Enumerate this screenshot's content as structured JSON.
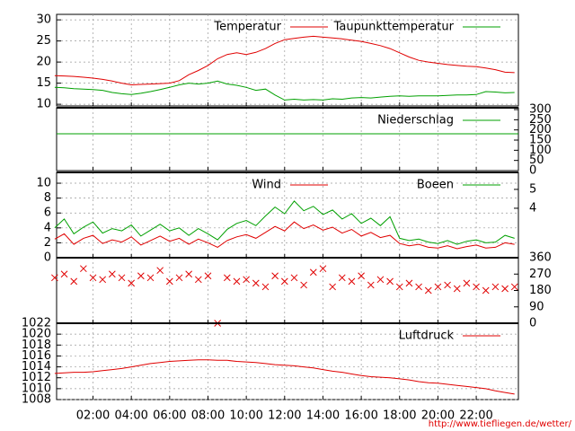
{
  "chart_data": [
    {
      "type": "line",
      "x": [
        0,
        0.5,
        1,
        1.5,
        2,
        2.5,
        3,
        3.5,
        4,
        4.5,
        5,
        5.5,
        6,
        6.5,
        7,
        7.5,
        8,
        8.5,
        9,
        9.5,
        10,
        10.5,
        11,
        11.5,
        12,
        12.5,
        13,
        13.5,
        14,
        14.5,
        15,
        15.5,
        16,
        16.5,
        17,
        17.5,
        18,
        18.5,
        19,
        19.5,
        20,
        20.5,
        21,
        21.5,
        22,
        22.5,
        23,
        23.5,
        24
      ],
      "ylim": [
        9.6,
        31.3
      ],
      "yticks": [
        10,
        15,
        20,
        25,
        30
      ],
      "grid": true,
      "series": [
        {
          "name": "Temperatur",
          "color": "#e00000",
          "values": [
            16.8,
            16.7,
            16.6,
            16.4,
            16.2,
            15.9,
            15.5,
            15.0,
            14.6,
            14.7,
            14.8,
            14.9,
            15.0,
            15.6,
            17.0,
            18.0,
            19.2,
            20.8,
            21.8,
            22.2,
            21.8,
            22.3,
            23.2,
            24.4,
            25.3,
            25.6,
            25.9,
            26.1,
            25.9,
            25.7,
            25.5,
            25.2,
            24.9,
            24.4,
            23.9,
            23.2,
            22.2,
            21.2,
            20.4,
            20.0,
            19.7,
            19.4,
            19.2,
            19.0,
            18.9,
            18.6,
            18.2,
            17.6,
            17.5
          ]
        },
        {
          "name": "Taupunkttemperatur",
          "color": "#00a000",
          "values": [
            14.0,
            13.9,
            13.7,
            13.6,
            13.5,
            13.3,
            12.8,
            12.5,
            12.3,
            12.6,
            13.0,
            13.5,
            14.0,
            14.6,
            15.0,
            14.8,
            15.0,
            15.5,
            14.8,
            14.5,
            14.0,
            13.3,
            13.6,
            12.2,
            11.0,
            11.2,
            11.0,
            11.1,
            11.0,
            11.3,
            11.2,
            11.5,
            11.6,
            11.5,
            11.7,
            11.9,
            12.0,
            11.9,
            12.0,
            12.0,
            12.0,
            12.1,
            12.2,
            12.2,
            12.3,
            13.0,
            12.9,
            12.7,
            12.8
          ]
        }
      ]
    },
    {
      "type": "line",
      "x": [
        0.1,
        24.2
      ],
      "y2lim": [
        0,
        309
      ],
      "y2ticks": [
        0,
        50,
        100,
        150,
        200,
        250,
        300
      ],
      "series": [
        {
          "name": "Niederschlag",
          "color": "#00a000",
          "axis": "y2",
          "values": [
            181,
            181
          ]
        }
      ]
    },
    {
      "type": "line",
      "x": [
        0,
        0.5,
        1,
        1.5,
        2,
        2.5,
        3,
        3.5,
        4,
        4.5,
        5,
        5.5,
        6,
        6.5,
        7,
        7.5,
        8,
        8.5,
        9,
        9.5,
        10,
        10.5,
        11,
        11.5,
        12,
        12.5,
        13,
        13.5,
        14,
        14.5,
        15,
        15.5,
        16,
        16.5,
        17,
        17.5,
        18,
        18.5,
        19,
        19.5,
        20,
        20.5,
        21,
        21.5,
        22,
        22.5,
        23,
        23.5,
        24
      ],
      "ylim": [
        0,
        11.45
      ],
      "yticks": [
        0,
        2,
        4,
        6,
        8,
        10
      ],
      "y2lim": [
        1.38,
        5.9
      ],
      "y2ticks": [
        4,
        5
      ],
      "grid": true,
      "series": [
        {
          "name": "Wind",
          "color": "#e00000",
          "values": [
            2.5,
            3.2,
            1.8,
            2.6,
            3.0,
            1.9,
            2.4,
            2.1,
            2.8,
            1.7,
            2.3,
            2.9,
            2.2,
            2.6,
            1.8,
            2.5,
            2.0,
            1.4,
            2.3,
            2.8,
            3.1,
            2.6,
            3.4,
            4.2,
            3.6,
            4.8,
            3.9,
            4.4,
            3.7,
            4.1,
            3.3,
            3.8,
            2.9,
            3.4,
            2.7,
            3.0,
            1.9,
            1.6,
            1.8,
            1.4,
            1.3,
            1.6,
            1.2,
            1.5,
            1.7,
            1.3,
            1.4,
            2.0,
            1.8
          ]
        },
        {
          "name": "Boeen",
          "color": "#00a000",
          "values": [
            4.0,
            5.2,
            3.2,
            4.1,
            4.8,
            3.3,
            3.9,
            3.6,
            4.4,
            2.9,
            3.7,
            4.5,
            3.6,
            4.0,
            3.0,
            3.9,
            3.2,
            2.4,
            3.8,
            4.6,
            5.0,
            4.3,
            5.6,
            6.8,
            5.9,
            7.6,
            6.3,
            6.9,
            5.8,
            6.4,
            5.2,
            5.9,
            4.6,
            5.3,
            4.3,
            5.5,
            2.6,
            2.3,
            2.5,
            2.1,
            1.9,
            2.3,
            1.8,
            2.2,
            2.4,
            2.0,
            2.1,
            3.0,
            2.6
          ]
        }
      ]
    },
    {
      "type": "scatter",
      "x": [
        0,
        0.5,
        1,
        1.5,
        2,
        2.5,
        3,
        3.5,
        4,
        4.5,
        5,
        5.5,
        6,
        6.5,
        7,
        7.5,
        8,
        8.5,
        9,
        9.5,
        10,
        10.5,
        11,
        11.5,
        12,
        12.5,
        13,
        13.5,
        14,
        14.5,
        15,
        15.5,
        16,
        16.5,
        17,
        17.5,
        18,
        18.5,
        19,
        19.5,
        20,
        20.5,
        21,
        21.5,
        22,
        22.5,
        23,
        23.5,
        24
      ],
      "y2lim": [
        0,
        360
      ],
      "y2ticks": [
        0,
        90,
        180,
        270,
        360
      ],
      "series": [
        {
          "color": "#e00000",
          "axis": "y2",
          "values": [
            250,
            270,
            230,
            300,
            250,
            240,
            270,
            250,
            220,
            260,
            250,
            290,
            230,
            250,
            270,
            240,
            260,
            0,
            250,
            230,
            240,
            220,
            200,
            260,
            230,
            250,
            210,
            280,
            300,
            200,
            250,
            230,
            260,
            210,
            240,
            230,
            200,
            220,
            200,
            180,
            200,
            210,
            190,
            220,
            200,
            180,
            200,
            190,
            200
          ]
        }
      ]
    },
    {
      "type": "line",
      "x": [
        0,
        0.5,
        1,
        1.5,
        2,
        2.5,
        3,
        3.5,
        4,
        4.5,
        5,
        5.5,
        6,
        6.5,
        7,
        7.5,
        8,
        8.5,
        9,
        9.5,
        10,
        10.5,
        11,
        11.5,
        12,
        12.5,
        13,
        13.5,
        14,
        14.5,
        15,
        15.5,
        16,
        16.5,
        17,
        17.5,
        18,
        18.5,
        19,
        19.5,
        20,
        20.5,
        21,
        21.5,
        22,
        22.5,
        23,
        23.5,
        24
      ],
      "xlim": [
        0.1,
        24.2
      ],
      "xticks": [
        {
          "value": 2,
          "label": "02:00"
        },
        {
          "value": 4,
          "label": "04:00"
        },
        {
          "value": 6,
          "label": "06:00"
        },
        {
          "value": 8,
          "label": "08:00"
        },
        {
          "value": 10,
          "label": "10:00"
        },
        {
          "value": 12,
          "label": "12:00"
        },
        {
          "value": 14,
          "label": "14:00"
        },
        {
          "value": 16,
          "label": "16:00"
        },
        {
          "value": 18,
          "label": "18:00"
        },
        {
          "value": 20,
          "label": "20:00"
        },
        {
          "value": 22,
          "label": "22:00"
        }
      ],
      "ylim": [
        1008,
        1022
      ],
      "yticks": [
        1008,
        1010,
        1012,
        1014,
        1016,
        1018,
        1020,
        1022
      ],
      "grid": true,
      "series": [
        {
          "name": "Luftdruck",
          "color": "#e00000",
          "values": [
            1012.8,
            1012.9,
            1013.0,
            1013.0,
            1013.1,
            1013.3,
            1013.5,
            1013.7,
            1014.0,
            1014.3,
            1014.6,
            1014.8,
            1015.0,
            1015.1,
            1015.2,
            1015.3,
            1015.3,
            1015.2,
            1015.2,
            1015.0,
            1014.9,
            1014.8,
            1014.6,
            1014.4,
            1014.3,
            1014.2,
            1014.0,
            1013.8,
            1013.5,
            1013.2,
            1013.0,
            1012.7,
            1012.4,
            1012.2,
            1012.1,
            1012.0,
            1011.8,
            1011.6,
            1011.3,
            1011.1,
            1011.0,
            1010.8,
            1010.6,
            1010.4,
            1010.2,
            1010.0,
            1009.6,
            1009.3,
            1009.0
          ]
        }
      ]
    }
  ],
  "footer": "http://www.tiefliegen.de/wetter/"
}
